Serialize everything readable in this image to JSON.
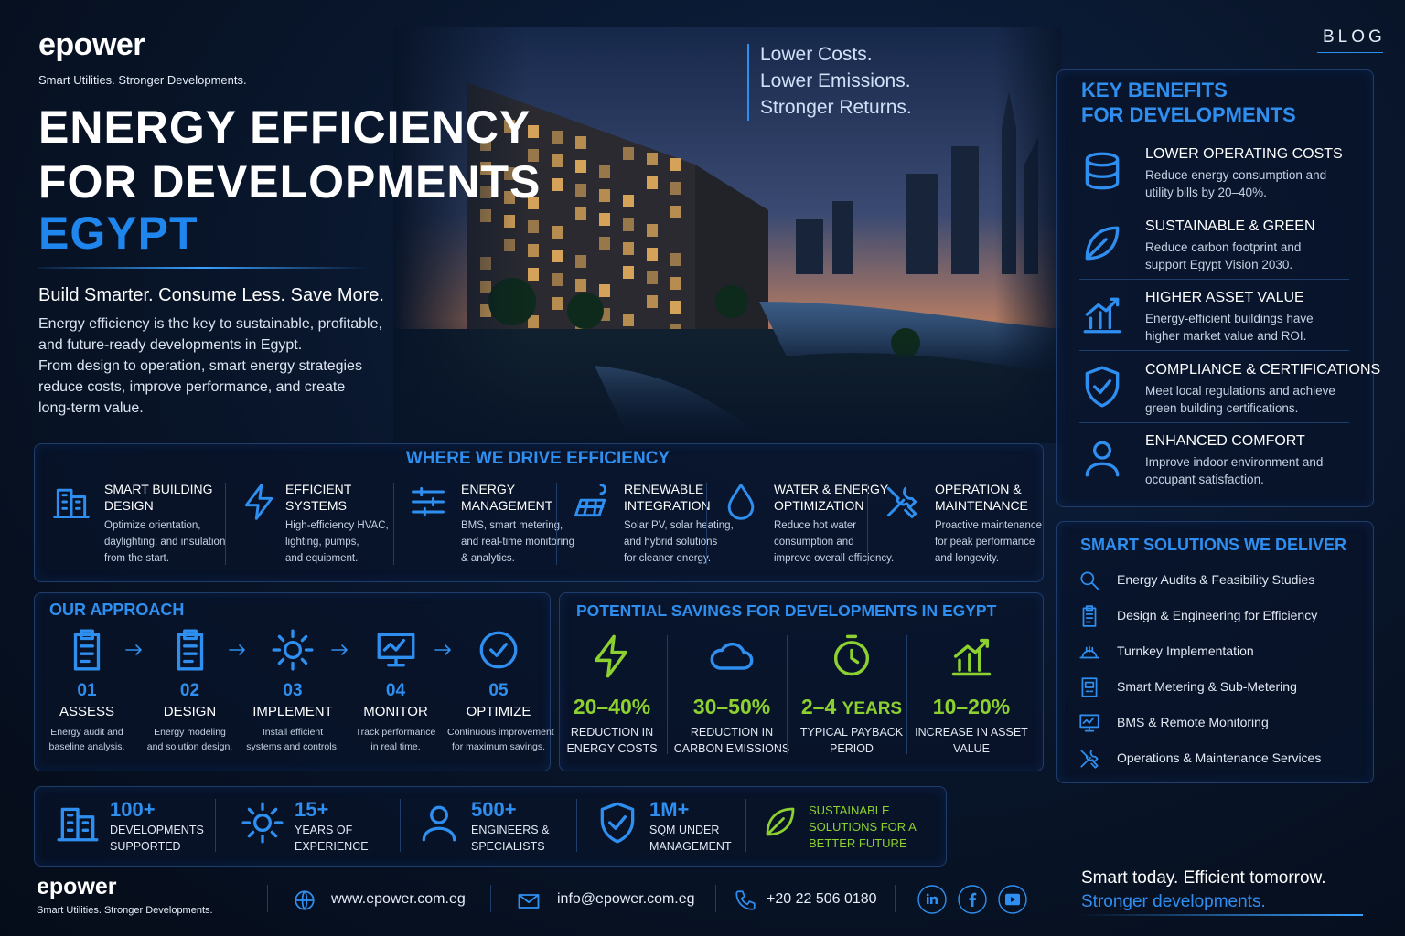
{
  "header": {
    "logo": "epower",
    "tagline": "Smart Utilities. Stronger Developments.",
    "blog": "BLOG"
  },
  "hero": {
    "title": [
      "ENERGY EFFICIENCY",
      "FOR DEVELOPMENTS"
    ],
    "highlight": "EGYPT",
    "subtitle": "Build Smarter. Consume Less. Save More.",
    "paragraph": [
      "Energy efficiency is the key to sustainable, profitable,",
      "and future-ready developments in Egypt.",
      "From design to operation, smart energy strategies",
      "reduce costs, improve performance, and create",
      "long-term value."
    ],
    "slogan": [
      "Lower Costs.",
      "Lower Emissions.",
      "Stronger Returns."
    ]
  },
  "benefits": {
    "title": [
      "KEY BENEFITS",
      "FOR DEVELOPMENTS"
    ],
    "items": [
      {
        "title": "LOWER OPERATING COSTS",
        "text": [
          "Reduce energy consumption and",
          "utility bills by 20–40%."
        ]
      },
      {
        "title": "SUSTAINABLE & GREEN",
        "text": [
          "Reduce carbon footprint and",
          "support Egypt Vision 2030."
        ]
      },
      {
        "title": "HIGHER ASSET VALUE",
        "text": [
          "Energy-efficient buildings have",
          "higher market value and ROI."
        ]
      },
      {
        "title": "COMPLIANCE & CERTIFICATIONS",
        "text": [
          "Meet local regulations and achieve",
          "green building certifications."
        ]
      },
      {
        "title": "ENHANCED COMFORT",
        "text": [
          "Improve indoor environment and",
          "occupant satisfaction."
        ]
      }
    ]
  },
  "efficiency": {
    "title": "WHERE WE DRIVE EFFICIENCY",
    "items": [
      {
        "title": [
          "SMART BUILDING",
          "DESIGN"
        ],
        "text": [
          "Optimize orientation,",
          "daylighting, and insulation",
          "from the start."
        ]
      },
      {
        "title": [
          "EFFICIENT",
          "SYSTEMS"
        ],
        "text": [
          "High-efficiency HVAC,",
          "lighting, pumps,",
          "and equipment."
        ]
      },
      {
        "title": [
          "ENERGY",
          "MANAGEMENT"
        ],
        "text": [
          "BMS, smart metering,",
          "and real-time monitoring",
          "& analytics."
        ]
      },
      {
        "title": [
          "RENEWABLE",
          "INTEGRATION"
        ],
        "text": [
          "Solar PV, solar heating,",
          "and hybrid solutions",
          "for cleaner energy."
        ]
      },
      {
        "title": [
          "WATER & ENERGY",
          "OPTIMIZATION"
        ],
        "text": [
          "Reduce hot water",
          "consumption and",
          "improve overall efficiency."
        ]
      },
      {
        "title": [
          "OPERATION &",
          "MAINTENANCE"
        ],
        "text": [
          "Proactive maintenance",
          "for peak performance",
          "and longevity."
        ]
      }
    ]
  },
  "approach": {
    "title": "OUR APPROACH",
    "steps": [
      {
        "number": "01",
        "title": "ASSESS",
        "text": [
          "Energy audit and",
          "baseline analysis."
        ]
      },
      {
        "number": "02",
        "title": "DESIGN",
        "text": [
          "Energy modeling",
          "and solution design."
        ]
      },
      {
        "number": "03",
        "title": "IMPLEMENT",
        "text": [
          "Install efficient",
          "systems and controls."
        ]
      },
      {
        "number": "04",
        "title": "MONITOR",
        "text": [
          "Track performance",
          "in real time."
        ]
      },
      {
        "number": "05",
        "title": "OPTIMIZE",
        "text": [
          "Continuous improvement",
          "for maximum savings."
        ]
      }
    ]
  },
  "savings": {
    "title": "POTENTIAL SAVINGS FOR DEVELOPMENTS IN EGYPT",
    "items": [
      {
        "value": "20–40%",
        "label": [
          "REDUCTION IN",
          "ENERGY COSTS"
        ]
      },
      {
        "value": "30–50%",
        "label": [
          "REDUCTION IN",
          "CARBON EMISSIONS"
        ]
      },
      {
        "value": "2–4",
        "unit": "YEARS",
        "label": [
          "TYPICAL PAYBACK",
          "PERIOD"
        ]
      },
      {
        "value": "10–20%",
        "label": [
          "INCREASE IN ASSET",
          "VALUE"
        ]
      }
    ]
  },
  "solutions": {
    "title": "SMART SOLUTIONS WE DELIVER",
    "items": [
      "Energy Audits & Feasibility Studies",
      "Design & Engineering for Efficiency",
      "Turnkey Implementation",
      "Smart Metering & Sub-Metering",
      "BMS & Remote Monitoring",
      "Operations & Maintenance Services"
    ]
  },
  "stats": {
    "items": [
      {
        "value": "100+",
        "label": [
          "DEVELOPMENTS",
          "SUPPORTED"
        ]
      },
      {
        "value": "15+",
        "label": [
          "YEARS OF",
          "EXPERIENCE"
        ]
      },
      {
        "value": "500+",
        "label": [
          "ENGINEERS &",
          "SPECIALISTS"
        ]
      },
      {
        "value": "1M+",
        "label": [
          "SQM UNDER",
          "MANAGEMENT"
        ]
      }
    ],
    "sustainable": [
      "SUSTAINABLE",
      "SOLUTIONS FOR A",
      "BETTER FUTURE"
    ]
  },
  "footer": {
    "logo": "epower",
    "tagline": "Smart Utilities. Stronger Developments.",
    "website": "www.epower.com.eg",
    "email": "info@epower.com.eg",
    "phone": "+20 22 506 0180",
    "slogan": "Smart today. Efficient tomorrow.",
    "slogan_highlight": "Stronger developments."
  }
}
